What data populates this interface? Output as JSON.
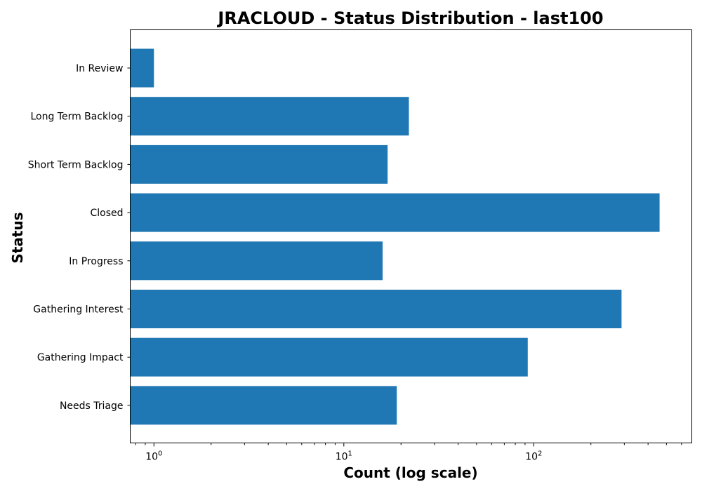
{
  "chart_data": {
    "type": "bar",
    "orientation": "horizontal",
    "title": "JRACLOUD - Status Distribution - last100",
    "xlabel": "Count (log scale)",
    "ylabel": "Status",
    "x_scale": "log",
    "xlim": [
      0.75,
      680
    ],
    "x_ticks": [
      {
        "base": "10",
        "exponent": "0",
        "value": 1
      },
      {
        "base": "10",
        "exponent": "1",
        "value": 10
      },
      {
        "base": "10",
        "exponent": "2",
        "value": 100
      }
    ],
    "categories": [
      "In Review",
      "Long Term Backlog",
      "Short Term Backlog",
      "Closed",
      "In Progress",
      "Gathering Interest",
      "Gathering Impact",
      "Needs Triage"
    ],
    "values": [
      1,
      22,
      17,
      460,
      16,
      290,
      93,
      19
    ],
    "bar_color": "#1f77b4",
    "grid": false,
    "legend": "none"
  }
}
